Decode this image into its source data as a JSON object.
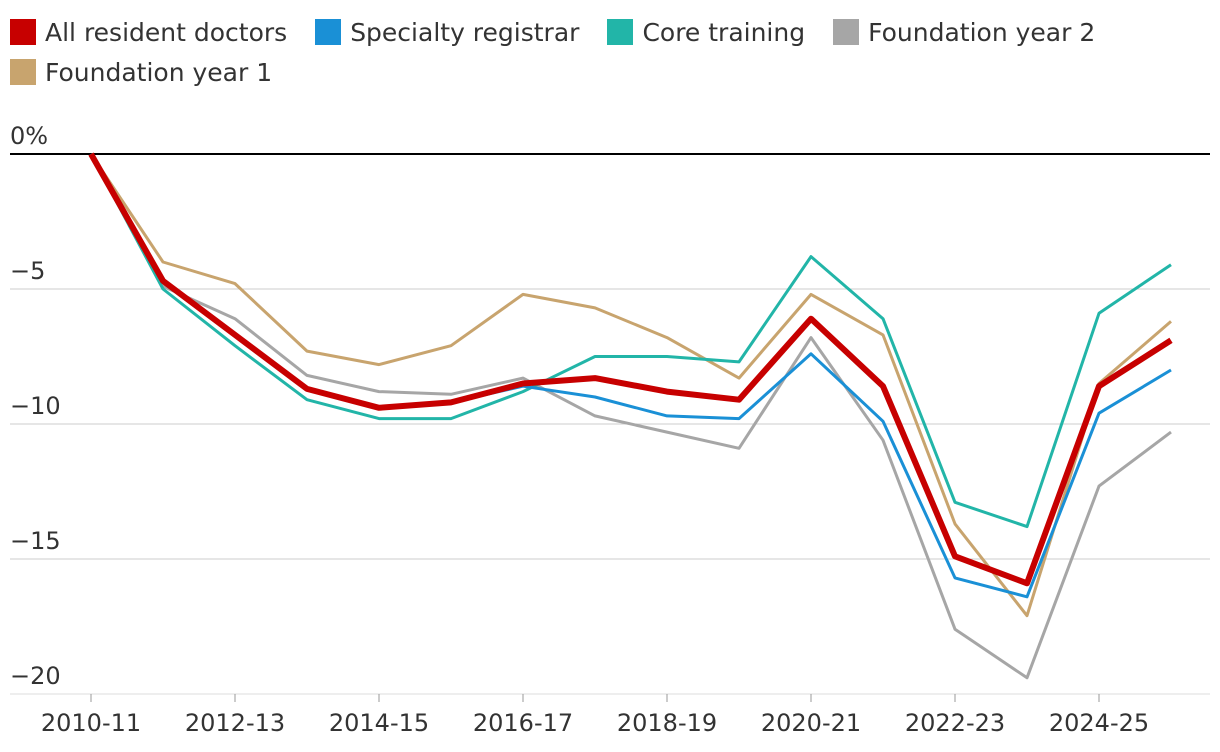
{
  "chart_data": {
    "type": "line",
    "title": "",
    "xlabel": "",
    "ylabel": "",
    "ylim": [
      -20,
      0
    ],
    "y_ticks": [
      {
        "value": 0,
        "label": "0%"
      },
      {
        "value": -5,
        "label": "−5"
      },
      {
        "value": -10,
        "label": "−10"
      },
      {
        "value": -15,
        "label": "−15"
      },
      {
        "value": -20,
        "label": "−20"
      }
    ],
    "x": [
      "2010-11",
      "2011-12",
      "2012-13",
      "2013-14",
      "2014-15",
      "2015-16",
      "2016-17",
      "2017-18",
      "2018-19",
      "2019-20",
      "2020-21",
      "2021-22",
      "2022-23",
      "2023-24",
      "2024-25",
      "2025-26"
    ],
    "x_tick_labels": [
      {
        "index": 0,
        "label": "2010-11"
      },
      {
        "index": 2,
        "label": "2012-13"
      },
      {
        "index": 4,
        "label": "2014-15"
      },
      {
        "index": 6,
        "label": "2016-17"
      },
      {
        "index": 8,
        "label": "2018-19"
      },
      {
        "index": 10,
        "label": "2020-21"
      },
      {
        "index": 12,
        "label": "2022-23"
      },
      {
        "index": 14,
        "label": "2024-25"
      }
    ],
    "grid": true,
    "legend_position": "top-left",
    "series": [
      {
        "name": "Foundation year 1",
        "color": "#c8a46e",
        "width": 3,
        "values": [
          0,
          -4.0,
          -4.8,
          -7.3,
          -7.8,
          -7.1,
          -5.2,
          -5.7,
          -6.8,
          -8.3,
          -5.2,
          -6.7,
          -13.7,
          -17.1,
          -8.5,
          -6.2
        ]
      },
      {
        "name": "Foundation year 2",
        "color": "#a6a6a6",
        "width": 3,
        "values": [
          0,
          -4.9,
          -6.1,
          -8.2,
          -8.8,
          -8.9,
          -8.3,
          -9.7,
          -10.3,
          -10.9,
          -6.8,
          -10.6,
          -17.6,
          -19.4,
          -12.3,
          -10.3
        ]
      },
      {
        "name": "Core training",
        "color": "#22b5a8",
        "width": 3,
        "values": [
          0,
          -5.0,
          -7.1,
          -9.1,
          -9.8,
          -9.8,
          -8.8,
          -7.5,
          -7.5,
          -7.7,
          -3.8,
          -6.1,
          -12.9,
          -13.8,
          -5.9,
          -4.1
        ]
      },
      {
        "name": "Specialty registrar",
        "color": "#1a90d6",
        "width": 3,
        "values": [
          0,
          -4.7,
          -6.7,
          -8.7,
          -9.4,
          -9.2,
          -8.6,
          -9.0,
          -9.7,
          -9.8,
          -7.4,
          -9.9,
          -15.7,
          -16.4,
          -9.6,
          -8.0
        ]
      },
      {
        "name": "All resident doctors",
        "color": "#c70000",
        "width": 6,
        "values": [
          0,
          -4.7,
          -6.7,
          -8.7,
          -9.4,
          -9.2,
          -8.5,
          -8.3,
          -8.8,
          -9.1,
          -6.1,
          -8.6,
          -14.9,
          -15.9,
          -8.6,
          -6.9
        ]
      }
    ],
    "legend_rows": [
      [
        "All resident doctors",
        "Specialty registrar",
        "Core training",
        "Foundation year 2"
      ],
      [
        "Foundation year 1"
      ]
    ]
  }
}
